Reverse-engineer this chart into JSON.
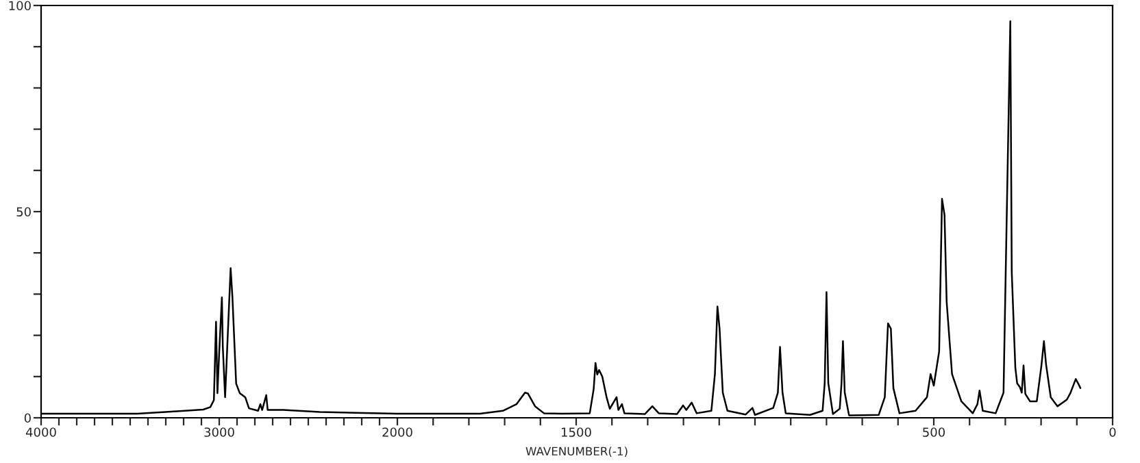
{
  "chart_data": [
    {
      "type": "line",
      "x": [
        4000,
        3460,
        3270,
        3090,
        3050,
        3030,
        3018,
        3010,
        3000,
        2985,
        2980,
        2967,
        2936,
        2926,
        2905,
        2885,
        2854,
        2833,
        2782,
        2769,
        2759,
        2736,
        2728,
        2641,
        2436,
        2000
      ],
      "series": [
        {
          "color": "#000000",
          "values": [
            1.0,
            1.0,
            1.5,
            2,
            2.6,
            4.3,
            23.3,
            6,
            16,
            29.2,
            17.3,
            5,
            36.3,
            29.3,
            8.3,
            6,
            5,
            2.3,
            1.7,
            3.3,
            1.9,
            5.5,
            1.9,
            1.9,
            1.4,
            1.0
          ]
        }
      ],
      "xlim": [
        4000,
        2000
      ],
      "xticks": [
        {
          "value": 4000,
          "label": "4000"
        },
        {
          "value": 3900,
          "label": null
        },
        {
          "value": 3800,
          "label": null
        },
        {
          "value": 3700,
          "label": null
        },
        {
          "value": 3600,
          "label": null
        },
        {
          "value": 3500,
          "label": null
        },
        {
          "value": 3400,
          "label": null
        },
        {
          "value": 3300,
          "label": null
        },
        {
          "value": 3200,
          "label": null
        },
        {
          "value": 3100,
          "label": null
        },
        {
          "value": 3000,
          "label": "3000"
        },
        {
          "value": 2900,
          "label": null
        },
        {
          "value": 2800,
          "label": null
        },
        {
          "value": 2700,
          "label": null
        },
        {
          "value": 2600,
          "label": null
        },
        {
          "value": 2500,
          "label": null
        },
        {
          "value": 2400,
          "label": null
        },
        {
          "value": 2300,
          "label": null
        },
        {
          "value": 2200,
          "label": null
        },
        {
          "value": 2100,
          "label": null
        },
        {
          "value": 2000,
          "label": "2000"
        }
      ],
      "ylim": [
        0,
        100
      ],
      "yticks": [
        0,
        {
          "value": 10,
          "label": null
        },
        {
          "value": 20,
          "label": null
        },
        {
          "value": 30,
          "label": null
        },
        {
          "value": 40,
          "label": null
        },
        50,
        {
          "value": 60,
          "label": null
        },
        {
          "value": 70,
          "label": null
        },
        {
          "value": 80,
          "label": null
        },
        {
          "value": 90,
          "label": null
        },
        100
      ],
      "marker": "none",
      "line_style": "solid"
    },
    {
      "type": "line",
      "xlabel": "WAVENUMBER(-1)",
      "x": [
        2000,
        1769,
        1705,
        1667,
        1643,
        1635,
        1615,
        1590,
        1538,
        1462,
        1451,
        1446,
        1441,
        1436,
        1427,
        1415,
        1406,
        1387,
        1382,
        1372,
        1365,
        1308,
        1287,
        1269,
        1218,
        1201,
        1192,
        1177,
        1163,
        1122,
        1112,
        1105,
        1099,
        1090,
        1077,
        1026,
        1007,
        1000,
        949,
        936,
        930,
        923,
        914,
        846,
        811,
        805,
        800,
        795,
        782,
        763,
        758,
        754,
        749,
        737,
        654,
        637,
        628,
        620,
        613,
        596,
        551,
        519,
        509,
        500,
        485,
        477,
        470,
        464,
        449,
        423,
        391,
        378,
        372,
        363,
        327,
        305,
        295,
        286,
        282,
        272,
        267,
        259,
        254,
        249,
        244,
        231,
        212,
        199,
        192,
        186,
        173,
        154,
        128,
        118,
        103,
        96,
        90
      ],
      "series": [
        {
          "color": "#000000",
          "values": [
            1.0,
            1.0,
            1.7,
            3.3,
            6.1,
            5.9,
            2.8,
            1.1,
            1.0,
            1.1,
            7,
            13.3,
            10.5,
            11.6,
            10,
            5,
            2.2,
            5,
            1.9,
            3.3,
            1.1,
            0.9,
            2.8,
            1.1,
            0.9,
            3.0,
            1.9,
            3.7,
            1.1,
            1.7,
            10.6,
            27,
            21.6,
            6.1,
            1.7,
            0.8,
            2.4,
            0.7,
            2.4,
            6.1,
            17.2,
            6.1,
            1.1,
            0.7,
            1.7,
            8.4,
            30.5,
            8.4,
            0.9,
            2.2,
            8.4,
            18.6,
            6.1,
            0.6,
            0.7,
            5,
            22.9,
            21.6,
            7.2,
            1.1,
            1.7,
            5,
            10.6,
            7.8,
            16.1,
            53.1,
            49.2,
            28.1,
            10.6,
            4,
            1.1,
            3.3,
            6.6,
            1.7,
            1.1,
            6.1,
            53.7,
            96.2,
            35.4,
            12.2,
            8.4,
            7.4,
            6.1,
            12.7,
            5.8,
            4,
            4,
            12.7,
            18.6,
            12.9,
            5,
            2.8,
            4.4,
            6,
            9.4,
            8.3,
            7.2
          ]
        }
      ],
      "xlim": [
        2000,
        0
      ],
      "xticks": [
        {
          "value": 1900,
          "label": null
        },
        {
          "value": 1800,
          "label": null
        },
        {
          "value": 1700,
          "label": null
        },
        {
          "value": 1600,
          "label": null
        },
        {
          "value": 1500,
          "label": "1500"
        },
        {
          "value": 1400,
          "label": null
        },
        {
          "value": 1300,
          "label": null
        },
        {
          "value": 1200,
          "label": null
        },
        {
          "value": 1100,
          "label": null
        },
        {
          "value": 1000,
          "label": null
        },
        {
          "value": 900,
          "label": null
        },
        {
          "value": 800,
          "label": null
        },
        {
          "value": 700,
          "label": null
        },
        {
          "value": 600,
          "label": null
        },
        {
          "value": 500,
          "label": "500"
        },
        {
          "value": 400,
          "label": null
        },
        {
          "value": 300,
          "label": null
        },
        {
          "value": 200,
          "label": null
        },
        {
          "value": 100,
          "label": null
        },
        {
          "value": 0,
          "label": "0"
        }
      ],
      "ylim": [
        0,
        100
      ],
      "tick_labels": "x",
      "marker": "none",
      "line_style": "solid"
    }
  ]
}
